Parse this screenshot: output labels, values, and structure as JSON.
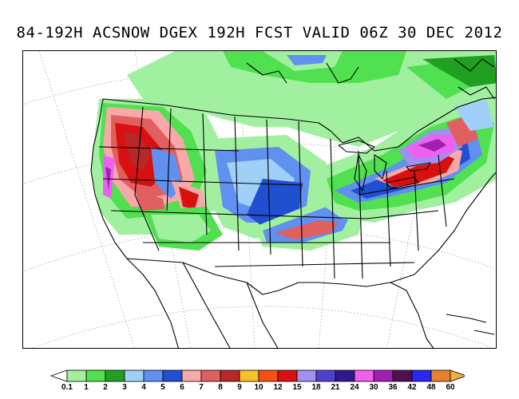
{
  "title": "84-192H ACSNOW DGEX 192H FCST VALID 06Z 30 DEC 2012",
  "legend": {
    "ticks": [
      "0.1",
      "1",
      "2",
      "3",
      "4",
      "5",
      "6",
      "7",
      "8",
      "9",
      "10",
      "12",
      "15",
      "18",
      "21",
      "24",
      "30",
      "36",
      "42",
      "48",
      "60"
    ],
    "colors": [
      "#a0f0a0",
      "#50e050",
      "#20a020",
      "#a0d0f8",
      "#6090f0",
      "#2050d0",
      "#f8a8a8",
      "#e06060",
      "#b82828",
      "#f8c028",
      "#f85010",
      "#d81010",
      "#a090f0",
      "#5040d0",
      "#301890",
      "#f060f0",
      "#a020b0",
      "#501050",
      "#2828f0",
      "#e88030"
    ],
    "under_color": "#ffffff",
    "over_color": "#f0b040"
  }
}
